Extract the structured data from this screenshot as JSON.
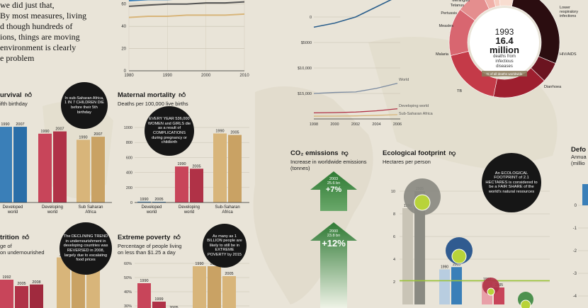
{
  "intro": {
    "lines": [
      "we did just that,",
      "By most measures, living",
      "d though hundreds of",
      "ions, things are moving",
      "environment is clearly",
      "e problem"
    ]
  },
  "colors": {
    "developed": "#3a7fb8",
    "developing": "#c8455a",
    "ssa": "#d8b57a",
    "green": "#3f8a42",
    "grey": "#8a8a82",
    "black": "#161616"
  },
  "top_line_chart": {
    "x_ticks": [
      "1980",
      "1990",
      "2000",
      "2010"
    ],
    "y_ticks": [
      "0",
      "20",
      "40",
      "60"
    ]
  },
  "survival": {
    "title": "urvival",
    "subtitle": "ifth birthday",
    "bubble": "In sub-Saharan Africa, 1 IN 7 CHILDREN DIE before their 5th birthday"
  },
  "maternal": {
    "title": "Maternal mortality",
    "subtitle": "Deaths per 100,000 live births",
    "bubble": "EVERY YEAR 536,000 WOMEN and GIRLS die as a result of COMPLICATIONS during pregnancy or childbirth"
  },
  "nutrition": {
    "title": "trition",
    "subtitle_lines": [
      "ge of",
      "on undernourished"
    ],
    "bubble": "The DECLINING TREND in undernourishment in developing countries was REVERSED in 2008, largely due to escalating food prices"
  },
  "poverty": {
    "title": "Extreme poverty",
    "subtitle_lines": [
      "Percentage of people living",
      "on less than $1.25 a day"
    ],
    "bubble": "As many as 1 BILLION people are likely to still be in EXTREME POVERTY by 2015"
  },
  "gdp": {
    "y_ticks": [
      "$20,000",
      "$15,000",
      "$10,000",
      "$5000",
      "0"
    ],
    "x_ticks": [
      "1998",
      "2000",
      "2002",
      "2004",
      "2006"
    ],
    "labels": [
      "World",
      "Developing world",
      "Sub-Saharan Africa"
    ]
  },
  "disease": {
    "year": "1993",
    "value": "16.4",
    "unit": "million",
    "desc_lines": [
      "deaths from",
      "infectious",
      "diseases"
    ],
    "inner_label": "% of all deaths worldwide",
    "labels": [
      "Meningitis",
      "Tetanus",
      "Pertussis",
      "Measles",
      "Malaria",
      "TB",
      "Diarrhoea",
      "HIV/AIDS",
      "Lower respiratory infections"
    ]
  },
  "co2": {
    "title": "CO₂ emissions",
    "subtitle_lines": [
      "Increase in worldwide emissions",
      "(tonnes)"
    ],
    "arrow1": {
      "year": "2003",
      "amount": "25.6 bn",
      "pct": "+7%"
    },
    "arrow2": {
      "year": "2000",
      "amount": "23.8 bn",
      "pct": "+12%"
    }
  },
  "footprint": {
    "title": "Ecological footprint",
    "subtitle": "Hectares per person",
    "bubble": "An ECOLOGICAL FOOTPRINT of 2.1 HECTARES is considered to be a FAIR SHARE of the world's natural resources"
  },
  "deforestation": {
    "title": "Defo",
    "subtitle_lines": [
      "Annua",
      "(millio"
    ],
    "y_ticks": [
      "0",
      "-1",
      "-2",
      "-3",
      "-4"
    ]
  },
  "chart_data": [
    {
      "type": "line",
      "title": "",
      "x": [
        1980,
        1985,
        1990,
        1995,
        2000,
        2005,
        2010
      ],
      "ylim": [
        0,
        70
      ],
      "series": [
        {
          "values": [
            68,
            69,
            69,
            70,
            70,
            70,
            70
          ]
        },
        {
          "values": [
            63,
            64,
            64,
            65,
            66,
            66,
            67
          ]
        },
        {
          "values": [
            58,
            59,
            60,
            60,
            61,
            61,
            62
          ]
        },
        {
          "values": [
            48,
            49,
            49,
            50,
            50,
            50,
            51
          ]
        }
      ]
    },
    {
      "type": "bar",
      "title": "Survival",
      "categories": [
        "Developed world",
        "Developing world",
        "Sub Saharan Africa"
      ],
      "series": [
        {
          "name": "1990",
          "values": [
            99,
            90,
            82
          ]
        },
        {
          "name": "2007",
          "values": [
            99,
            93,
            86
          ]
        }
      ],
      "bar_labels": [
        [
          "1990",
          "2007"
        ],
        [
          "1990",
          "2007"
        ],
        [
          "1990",
          "2007"
        ]
      ]
    },
    {
      "type": "bar",
      "title": "Maternal mortality",
      "ylabel": "Deaths per 100,000 live births",
      "ylim": [
        0,
        1000
      ],
      "y_ticks": [
        0,
        200,
        400,
        600,
        800,
        1000
      ],
      "categories": [
        "Developed world",
        "Developing world",
        "Sub-Saharan Africa"
      ],
      "series": [
        {
          "name": "1990",
          "values": [
            11,
            480,
            920
          ]
        },
        {
          "name": "2005",
          "values": [
            9,
            450,
            900
          ]
        }
      ],
      "bar_labels": [
        [
          "1990",
          "2005"
        ],
        [
          "1990",
          "2005"
        ],
        [
          "1990",
          "2005"
        ]
      ]
    },
    {
      "type": "bar",
      "title": "Nutrition",
      "categories": [
        "Developing world",
        "Sub-Saharan Africa"
      ],
      "series": [
        {
          "name": "early",
          "values": [
            20,
            34
          ]
        },
        {
          "name": "mid",
          "values": [
            16,
            30
          ]
        },
        {
          "name": "late",
          "values": [
            17,
            30
          ]
        }
      ],
      "bar_labels": [
        [
          "1992",
          "2005",
          "2008"
        ],
        [
          "1992",
          "2006",
          "2008"
        ]
      ]
    },
    {
      "type": "bar",
      "title": "Extreme poverty",
      "ylabel": "Percentage of people living on less than $1.25 a day",
      "y_ticks": [
        "30%",
        "40%",
        "50%",
        "60%"
      ],
      "categories": [
        "Developing world",
        "Sub-Saharan Africa"
      ],
      "series": [
        {
          "name": "early",
          "values": [
            46,
            58
          ]
        },
        {
          "name": "mid",
          "values": [
            33,
            58
          ]
        },
        {
          "name": "late",
          "values": [
            27,
            51
          ]
        }
      ],
      "bar_labels": [
        [
          "1990",
          "1999",
          "2005"
        ],
        [
          "1990",
          "1999",
          "2005"
        ]
      ]
    },
    {
      "type": "line",
      "title": "",
      "x": [
        1998,
        2000,
        2002,
        2004,
        2006
      ],
      "ylim": [
        0,
        22000
      ],
      "y_ticks": [
        0,
        5000,
        10000,
        15000,
        20000
      ],
      "series": [
        {
          "name": "",
          "values": [
            18000,
            18800,
            20000,
            22000,
            24000
          ]
        },
        {
          "name": "World",
          "values": [
            5000,
            5200,
            5300,
            6000,
            7000
          ]
        },
        {
          "name": "Developing world",
          "values": [
            1200,
            1250,
            1350,
            1600,
            2000
          ]
        },
        {
          "name": "Sub-Saharan Africa",
          "values": [
            550,
            560,
            600,
            700,
            850
          ]
        }
      ]
    },
    {
      "type": "pie",
      "title": "1993 16.4 million deaths from infectious diseases",
      "categories": [
        "Lower respiratory infections",
        "HIV/AIDS",
        "Diarrhoea",
        "TB",
        "Malaria",
        "Measles",
        "Pertussis",
        "Tetanus",
        "Meningitis"
      ],
      "values": [
        28,
        6,
        16,
        18,
        14,
        8,
        3,
        2,
        5
      ]
    },
    {
      "type": "bar",
      "title": "Ecological footprint",
      "ylabel": "Hectares per person",
      "ylim": [
        0,
        11
      ],
      "y_ticks": [
        2,
        4,
        6,
        8,
        10
      ],
      "categories": [
        "World",
        "Developing",
        "Sub-Saharan"
      ],
      "series": [
        {
          "name": "1990",
          "values": [
            8.5,
            3.1,
            2.0
          ]
        },
        {
          "name": "2005",
          "values": [
            10,
            3.3,
            1.5
          ]
        }
      ],
      "bar_labels": [
        [
          "1990",
          "2005"
        ],
        [
          "1990",
          "2005"
        ],
        [
          "1990",
          "2005"
        ]
      ]
    }
  ]
}
